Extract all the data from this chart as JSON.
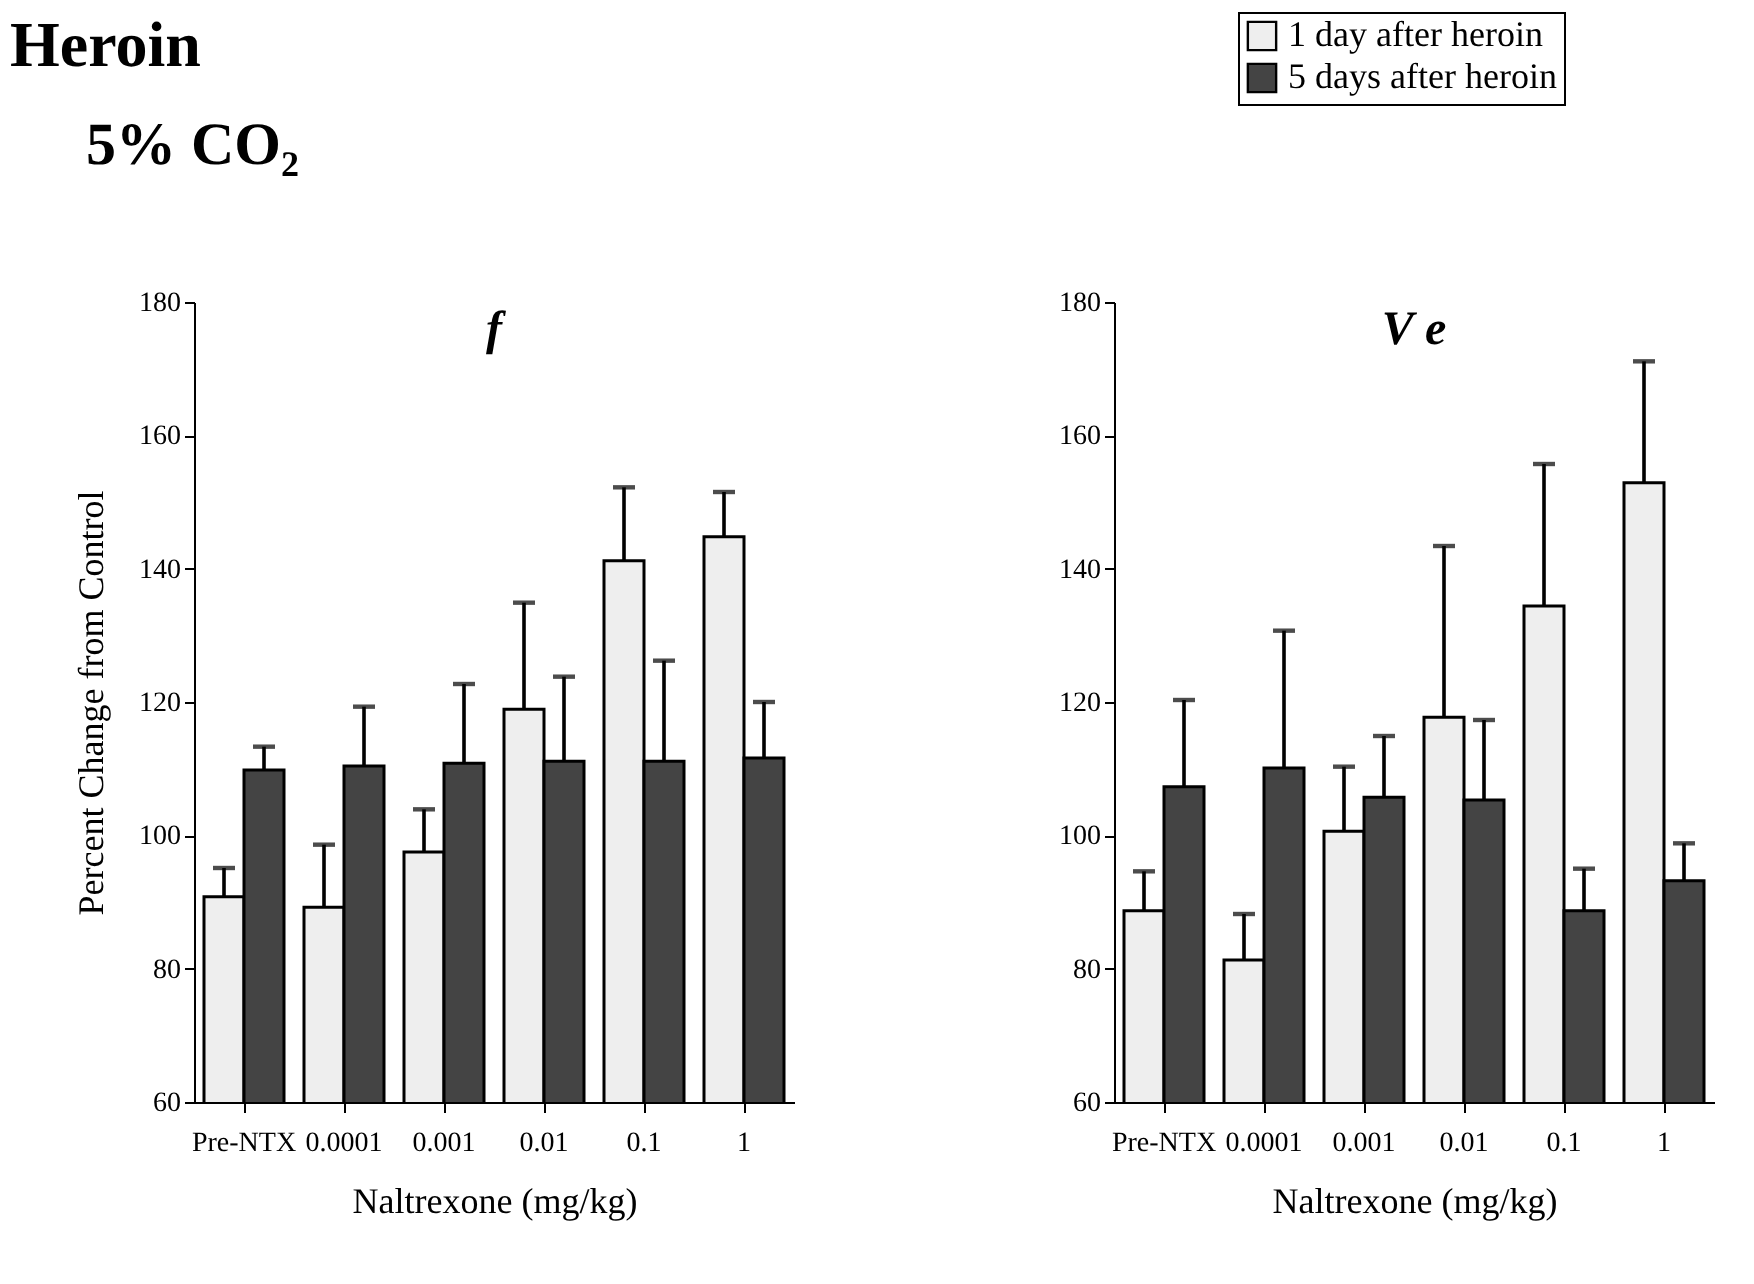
{
  "chart_data": [
    {
      "type": "bar",
      "title": "f",
      "xlabel": "Naltrexone (mg/kg)",
      "ylabel": "Percent Change from Control",
      "annotations": [
        "Heroin",
        "5% CO₂"
      ],
      "categories": [
        "Pre-NTX",
        "0.0001",
        "0.001",
        "0.01",
        "0.1",
        "1"
      ],
      "series": [
        {
          "name": "1 day after heroin",
          "color": "#eeeeee",
          "values": [
            90.8,
            89.2,
            97.5,
            118.9,
            141.2,
            144.8
          ],
          "errors": [
            [
              90.8,
              95.1
            ],
            [
              89.2,
              98.6
            ],
            [
              97.5,
              103.9
            ],
            [
              118.9,
              134.9
            ],
            [
              141.2,
              152.2
            ],
            [
              144.8,
              151.5
            ]
          ]
        },
        {
          "name": "5 days after heroin",
          "color": "#444444",
          "values": [
            109.8,
            110.4,
            110.8,
            111.1,
            111.1,
            111.6
          ],
          "errors": [
            [
              109.8,
              113.3
            ],
            [
              110.4,
              119.3
            ],
            [
              110.8,
              122.7
            ],
            [
              111.1,
              123.8
            ],
            [
              111.1,
              126.2
            ],
            [
              111.6,
              120
            ]
          ]
        }
      ],
      "ylim": [
        60,
        180
      ],
      "yticks": [
        60,
        80,
        100,
        120,
        140,
        160,
        180
      ],
      "grid": false,
      "legend": "top right"
    },
    {
      "type": "bar",
      "title": "V e",
      "xlabel": "Naltrexone (mg/kg)",
      "categories": [
        "Pre-NTX",
        "0.0001",
        "0.001",
        "0.01",
        "0.1",
        "1"
      ],
      "series": [
        {
          "color": "#eeeeee",
          "values": [
            88.7,
            81.3,
            100.6,
            117.7,
            134.4,
            152.9
          ],
          "errors": [
            [
              88.7,
              94.6
            ],
            [
              81.3,
              88.2
            ],
            [
              100.6,
              110.3
            ],
            [
              117.7,
              143.4
            ],
            [
              134.4,
              155.7
            ],
            [
              152.9,
              171.1
            ]
          ]
        },
        {
          "color": "#444444",
          "values": [
            107.3,
            110.1,
            105.7,
            105.3,
            88.7,
            93.2
          ],
          "errors": [
            [
              107.3,
              120.3
            ],
            [
              110.1,
              130.7
            ],
            [
              105.7,
              114.9
            ],
            [
              105.3,
              117.3
            ],
            [
              88.7,
              95
            ],
            [
              93.2,
              98.8
            ]
          ]
        }
      ],
      "ylim": [
        60,
        180
      ],
      "yticks": [
        60,
        80,
        100,
        120,
        140,
        160,
        180
      ],
      "grid": false
    }
  ]
}
